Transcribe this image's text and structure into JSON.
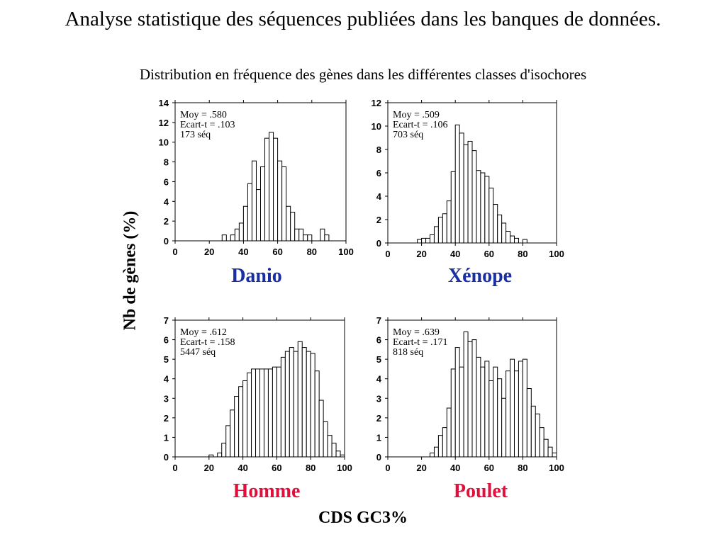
{
  "header": {
    "title": "Analyse statistique des séquences publiées dans les banques de données.",
    "subtitle": "Distribution en fréquence des gènes dans les différentes classes d'isochores"
  },
  "axes": {
    "ylabel": "Nb de gènes (%)",
    "xlabel": "CDS  GC3%"
  },
  "colors": {
    "danio": "#1a2fa0",
    "xenope": "#1a2fa0",
    "homme": "#e0103c",
    "poulet": "#e0103c",
    "bar_fill": "#ffffff",
    "bar_stroke": "#000000"
  },
  "chart_data": [
    {
      "type": "bar",
      "name": "Danio",
      "stats": [
        "Moy = .580",
        "Ecart-t = .103",
        "173 séq"
      ],
      "x_ticks": [
        0,
        20,
        40,
        60,
        80,
        100
      ],
      "y_ticks": [
        0,
        2,
        4,
        6,
        8,
        10,
        12,
        14
      ],
      "xlim": [
        0,
        100
      ],
      "ylim": [
        0,
        14
      ],
      "bin_width": 2.5,
      "bins": [
        [
          27.5,
          0.6
        ],
        [
          32.5,
          0.6
        ],
        [
          35,
          1.2
        ],
        [
          37.5,
          1.8
        ],
        [
          40,
          3.5
        ],
        [
          42.5,
          5.8
        ],
        [
          45,
          8.1
        ],
        [
          47.5,
          5.2
        ],
        [
          50,
          7.5
        ],
        [
          52.5,
          10.4
        ],
        [
          55,
          11.0
        ],
        [
          57.5,
          10.4
        ],
        [
          60,
          8.1
        ],
        [
          62.5,
          7.5
        ],
        [
          65,
          3.5
        ],
        [
          67.5,
          2.9
        ],
        [
          70,
          1.2
        ],
        [
          72.5,
          1.2
        ],
        [
          75,
          0.6
        ],
        [
          77.5,
          0.6
        ],
        [
          85,
          1.2
        ],
        [
          87.5,
          0.6
        ]
      ]
    },
    {
      "type": "bar",
      "name": "Xénope",
      "stats": [
        "Moy  = .509",
        "Ecart-t = .106",
        "703 séq"
      ],
      "x_ticks": [
        0,
        20,
        40,
        60,
        80,
        100
      ],
      "y_ticks": [
        0,
        2,
        4,
        6,
        8,
        10,
        12
      ],
      "xlim": [
        0,
        100
      ],
      "ylim": [
        0,
        12
      ],
      "bin_width": 2.5,
      "bins": [
        [
          17.5,
          0.3
        ],
        [
          20,
          0.4
        ],
        [
          22.5,
          0.4
        ],
        [
          25,
          0.7
        ],
        [
          27.5,
          1.4
        ],
        [
          30,
          2.2
        ],
        [
          32.5,
          2.5
        ],
        [
          35,
          3.6
        ],
        [
          37.5,
          6.1
        ],
        [
          40,
          10.1
        ],
        [
          42.5,
          9.4
        ],
        [
          45,
          8.4
        ],
        [
          47.5,
          8.7
        ],
        [
          50,
          7.9
        ],
        [
          52.5,
          6.2
        ],
        [
          55,
          6.0
        ],
        [
          57.5,
          5.7
        ],
        [
          60,
          4.7
        ],
        [
          62.5,
          3.3
        ],
        [
          65,
          2.4
        ],
        [
          67.5,
          1.7
        ],
        [
          70,
          1.0
        ],
        [
          72.5,
          0.6
        ],
        [
          75,
          0.4
        ],
        [
          80,
          0.3
        ]
      ]
    },
    {
      "type": "bar",
      "name": "Homme",
      "stats": [
        "Moy = .612",
        "Ecart-t = .158",
        "5447 séq"
      ],
      "x_ticks": [
        0,
        20,
        40,
        60,
        80,
        100
      ],
      "y_ticks": [
        0,
        1,
        2,
        3,
        4,
        5,
        6,
        7
      ],
      "xlim": [
        0,
        100
      ],
      "ylim": [
        0,
        7
      ],
      "bin_width": 2.5,
      "bins": [
        [
          20,
          0.1
        ],
        [
          25,
          0.2
        ],
        [
          27.5,
          0.7
        ],
        [
          30,
          1.6
        ],
        [
          32.5,
          2.4
        ],
        [
          35,
          3.1
        ],
        [
          37.5,
          3.6
        ],
        [
          40,
          3.9
        ],
        [
          42.5,
          4.3
        ],
        [
          45,
          4.5
        ],
        [
          47.5,
          4.5
        ],
        [
          50,
          4.5
        ],
        [
          52.5,
          4.5
        ],
        [
          55,
          4.5
        ],
        [
          57.5,
          4.6
        ],
        [
          60,
          4.6
        ],
        [
          62.5,
          5.1
        ],
        [
          65,
          5.4
        ],
        [
          67.5,
          5.6
        ],
        [
          70,
          5.4
        ],
        [
          72.5,
          5.9
        ],
        [
          75,
          5.6
        ],
        [
          77.5,
          5.4
        ],
        [
          80,
          5.3
        ],
        [
          82.5,
          4.4
        ],
        [
          85,
          2.9
        ],
        [
          87.5,
          1.8
        ],
        [
          90,
          1.1
        ],
        [
          92.5,
          0.7
        ],
        [
          95,
          0.3
        ],
        [
          97.5,
          0.1
        ]
      ]
    },
    {
      "type": "bar",
      "name": "Poulet",
      "stats": [
        "Moy = .639",
        "Ecart-t = .171",
        "818 séq"
      ],
      "x_ticks": [
        0,
        20,
        40,
        60,
        80,
        100
      ],
      "y_ticks": [
        0,
        1,
        2,
        3,
        4,
        5,
        6,
        7
      ],
      "xlim": [
        0,
        100
      ],
      "ylim": [
        0,
        7
      ],
      "bin_width": 2.5,
      "bins": [
        [
          25,
          0.2
        ],
        [
          27.5,
          0.5
        ],
        [
          30,
          1.1
        ],
        [
          32.5,
          1.5
        ],
        [
          35,
          2.5
        ],
        [
          37.5,
          4.5
        ],
        [
          40,
          5.6
        ],
        [
          42.5,
          4.6
        ],
        [
          45,
          6.4
        ],
        [
          47.5,
          5.9
        ],
        [
          50,
          6.0
        ],
        [
          52.5,
          5.1
        ],
        [
          55,
          4.6
        ],
        [
          57.5,
          4.9
        ],
        [
          60,
          3.9
        ],
        [
          62.5,
          4.6
        ],
        [
          65,
          4.0
        ],
        [
          67.5,
          3.0
        ],
        [
          70,
          4.4
        ],
        [
          72.5,
          5.0
        ],
        [
          75,
          4.4
        ],
        [
          77.5,
          4.9
        ],
        [
          80,
          5.0
        ],
        [
          82.5,
          3.5
        ],
        [
          85,
          2.6
        ],
        [
          87.5,
          2.2
        ],
        [
          90,
          1.5
        ],
        [
          92.5,
          0.9
        ],
        [
          95,
          0.5
        ],
        [
          97.5,
          0.2
        ]
      ]
    }
  ]
}
